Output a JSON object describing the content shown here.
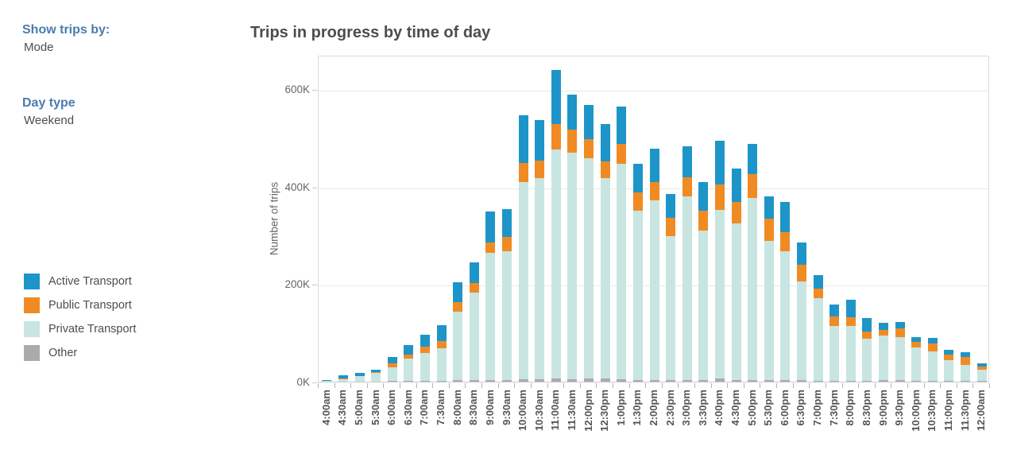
{
  "sidebar": {
    "show_trips_by_label": "Show trips by:",
    "show_trips_by_value": "Mode",
    "day_type_label": "Day type",
    "day_type_value": "Weekend"
  },
  "legend": {
    "position": "left",
    "items": [
      {
        "label": "Active Transport",
        "color": "#1e95c8"
      },
      {
        "label": "Public Transport",
        "color": "#f08b24"
      },
      {
        "label": "Private Transport",
        "color": "#c8e5e2"
      },
      {
        "label": "Other",
        "color": "#ababab"
      }
    ]
  },
  "chart_data": {
    "type": "bar",
    "stacked": true,
    "title": "Trips in progress by time of day",
    "xlabel": "",
    "ylabel": "Number of trips",
    "values_unit": "thousands of trips (K)",
    "ylim_k": [
      0,
      670
    ],
    "yticks_k": [
      0,
      200,
      400,
      600
    ],
    "ytick_labels": [
      "0K",
      "200K",
      "400K",
      "600K"
    ],
    "grid": "horizontal",
    "categories": [
      "4:00am",
      "4:30am",
      "5:00am",
      "5:30am",
      "6:00am",
      "6:30am",
      "7:00am",
      "7:30am",
      "8:00am",
      "8:30am",
      "9:00am",
      "9:30am",
      "10:00am",
      "10:30am",
      "11:00am",
      "11:30am",
      "12:00pm",
      "12:30pm",
      "1:00pm",
      "1:30pm",
      "2:00pm",
      "2:30pm",
      "3:00pm",
      "3:30pm",
      "4:00pm",
      "4:30pm",
      "5:00pm",
      "5:30pm",
      "6:00pm",
      "6:30pm",
      "7:00pm",
      "7:30pm",
      "8:00pm",
      "8:30pm",
      "9:00pm",
      "9:30pm",
      "10:00pm",
      "10:30pm",
      "11:00pm",
      "11:30pm",
      "12:00am"
    ],
    "series": [
      {
        "name": "Other",
        "color": "#ababab",
        "values_k": [
          0,
          0,
          0,
          0,
          1,
          1,
          1,
          2,
          3,
          3,
          4,
          4,
          5,
          5,
          6,
          5,
          6,
          6,
          5,
          4,
          4,
          4,
          4,
          4,
          7,
          4,
          4,
          3,
          3,
          3,
          2,
          2,
          2,
          2,
          4,
          4,
          2,
          2,
          1,
          1,
          1
        ]
      },
      {
        "name": "Private Transport",
        "color": "#c8e5e2",
        "values_k": [
          1,
          5,
          11,
          18,
          29,
          47,
          57,
          67,
          140,
          180,
          260,
          264,
          404,
          412,
          470,
          465,
          453,
          412,
          441,
          346,
          368,
          295,
          376,
          306,
          345,
          321,
          373,
          285,
          265,
          202,
          170,
          112,
          112,
          86,
          91,
          88,
          68,
          60,
          43,
          33,
          23
        ]
      },
      {
        "name": "Public Transport",
        "color": "#f08b24",
        "values_k": [
          0,
          2,
          1,
          1,
          8,
          8,
          14,
          14,
          20,
          20,
          22,
          29,
          40,
          37,
          52,
          47,
          38,
          33,
          41,
          38,
          38,
          37,
          39,
          41,
          52,
          44,
          48,
          47,
          38,
          34,
          19,
          19,
          18,
          14,
          11,
          18,
          12,
          17,
          12,
          17,
          7
        ]
      },
      {
        "name": "Active Transport",
        "color": "#1e95c8",
        "values_k": [
          3,
          6,
          6,
          6,
          12,
          19,
          25,
          33,
          41,
          42,
          63,
          57,
          97,
          82,
          111,
          72,
          71,
          78,
          77,
          58,
          68,
          49,
          63,
          59,
          90,
          68,
          62,
          45,
          62,
          46,
          28,
          25,
          36,
          28,
          15,
          13,
          10,
          11,
          10,
          10,
          6
        ]
      }
    ]
  }
}
